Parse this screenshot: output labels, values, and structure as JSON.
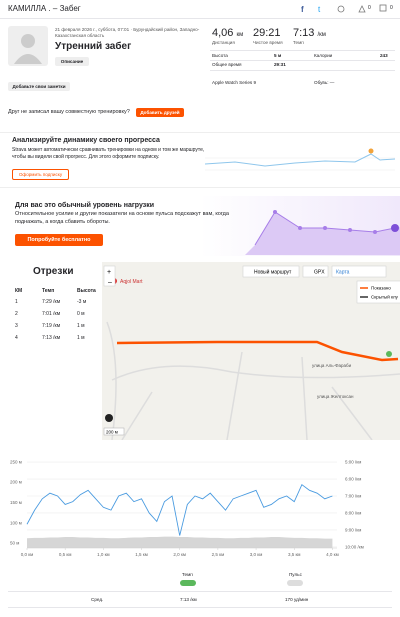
{
  "header": {
    "title": "КАМИЛЛА . – Забег",
    "kudos": "0",
    "comments": "0"
  },
  "activity": {
    "date": "21 февраля 2026 г., суббота, 07:01 · Бурундайский район, Западно-Казахстанская область",
    "title": "Утренний забег",
    "description_button": "Описание",
    "notes_button": "Добавьте свои заметки",
    "stats": [
      {
        "value": "4,06",
        "unit": "км",
        "label": "Дистанция"
      },
      {
        "value": "29:21",
        "label": "Чистое время"
      },
      {
        "value": "7:13",
        "unit": "/км",
        "label": "Темп"
      }
    ],
    "details": [
      [
        "Высота",
        "5 м",
        "Калории",
        "243"
      ],
      [
        "Общее время",
        "29:31"
      ]
    ],
    "device": "Apple Watch Series 9",
    "shoes": "Обувь: —"
  },
  "friends": {
    "text": "Друг не записал вашу совместную тренировку?",
    "button": "Добавить друзей"
  },
  "promo_progress": {
    "title": "Анализируйте динамику своего прогресса",
    "text": "Strava может автоматически сравнивать тренировки на одном и том же маршруте, чтобы вы видели свой прогресс. Для этого оформите подписку.",
    "button": "Оформить подписку"
  },
  "promo_effort": {
    "title": "Для вас это обычный уровень нагрузки",
    "text": "Относительное усилие и другие показатели на основе пульса подскажут вам, когда поднажать, а когда сбавить обороты.",
    "button": "Попробуйте бесплатно"
  },
  "splits": {
    "title": "Отрезки",
    "headers": [
      "КМ",
      "Темп",
      "Высота"
    ],
    "rows": [
      [
        "1",
        "7:29 /км",
        "-3 м"
      ],
      [
        "2",
        "7:01 /км",
        "0 м"
      ],
      [
        "3",
        "7:19 /км",
        "1 м"
      ],
      [
        "4",
        "7:13 /км",
        "1 м"
      ]
    ]
  },
  "map": {
    "new_route": "Новый маршрут",
    "gpx": "GPX",
    "layer": "Карта",
    "legend": [
      "Показано",
      "Скрытый клу"
    ],
    "place": "Aqjol Mart",
    "streets": [
      "улица Аль-Фараби",
      "улица Желтоксан"
    ],
    "scale": "200 м"
  },
  "chart_data": {
    "type": "line",
    "x": [
      0.0,
      0.1,
      0.2,
      0.3,
      0.4,
      0.5,
      0.6,
      0.7,
      0.8,
      0.9,
      1.0,
      1.1,
      1.2,
      1.3,
      1.4,
      1.5,
      1.6,
      1.7,
      1.8,
      1.9,
      2.0,
      2.1,
      2.2,
      2.3,
      2.4,
      2.5,
      2.6,
      2.7,
      2.8,
      2.9,
      3.0,
      3.1,
      3.2,
      3.3,
      3.4,
      3.5,
      3.6,
      3.7,
      3.8,
      3.9,
      4.0
    ],
    "series": [
      {
        "name": "Темп",
        "color": "#4a9be0",
        "axis": "y2",
        "values": [
          520,
          470,
          430,
          410,
          420,
          450,
          440,
          415,
          400,
          430,
          460,
          470,
          420,
          410,
          440,
          430,
          480,
          510,
          440,
          420,
          560,
          450,
          420,
          430,
          410,
          440,
          470,
          430,
          420,
          410,
          400,
          460,
          450,
          430,
          420,
          440,
          380,
          400,
          410,
          430,
          420
        ]
      },
      {
        "name": "Высота",
        "color": "#d6d6d6",
        "values": [
          62,
          63,
          63,
          64,
          64,
          65,
          65,
          64,
          64,
          63,
          63,
          62,
          62,
          63,
          64,
          64,
          65,
          65,
          66,
          66,
          65,
          65,
          64,
          64,
          63,
          63,
          62,
          62,
          63,
          63,
          64,
          64,
          65,
          65,
          64,
          63,
          63,
          62,
          62,
          61,
          61
        ]
      }
    ],
    "xlim": [
      0,
      4.06
    ],
    "xticks": [
      {
        "value": 0,
        "label": "0,0 км"
      },
      {
        "value": 0.5,
        "label": "0,5 км"
      },
      {
        "value": 1,
        "label": "1,0 км"
      },
      {
        "value": 1.5,
        "label": "1,5 км"
      },
      {
        "value": 2,
        "label": "2,0 км"
      },
      {
        "value": 2.5,
        "label": "2,5 км"
      },
      {
        "value": 3,
        "label": "3,0 км"
      },
      {
        "value": 3.5,
        "label": "3,5 км"
      },
      {
        "value": 4,
        "label": "4,0 км"
      }
    ],
    "ylim": [
      38,
      267
    ],
    "yticks": [
      {
        "value": 250,
        "label": "250 м"
      },
      {
        "value": 200,
        "label": "200 м"
      },
      {
        "value": 150,
        "label": "150 м"
      },
      {
        "value": 100,
        "label": "100 м"
      },
      {
        "value": 50,
        "label": "50 м"
      }
    ],
    "y2lim": [
      604,
      275
    ],
    "y2ticks": [
      {
        "value": 300,
        "label": "5:00 /км"
      },
      {
        "value": 360,
        "label": "6:00 /км"
      },
      {
        "value": 420,
        "label": "7:00 /км"
      },
      {
        "value": 480,
        "label": "8:00 /км"
      },
      {
        "value": 540,
        "label": "9:00 /км"
      },
      {
        "value": 600,
        "label": "10:00 /км"
      }
    ],
    "grid": true
  },
  "chart_controls": {
    "pace": "Темп",
    "heart_rate": "Пульс",
    "avg_label": "Сред.",
    "avg_pace": "7:13 /км",
    "avg_hr": "170 уд/мин"
  }
}
